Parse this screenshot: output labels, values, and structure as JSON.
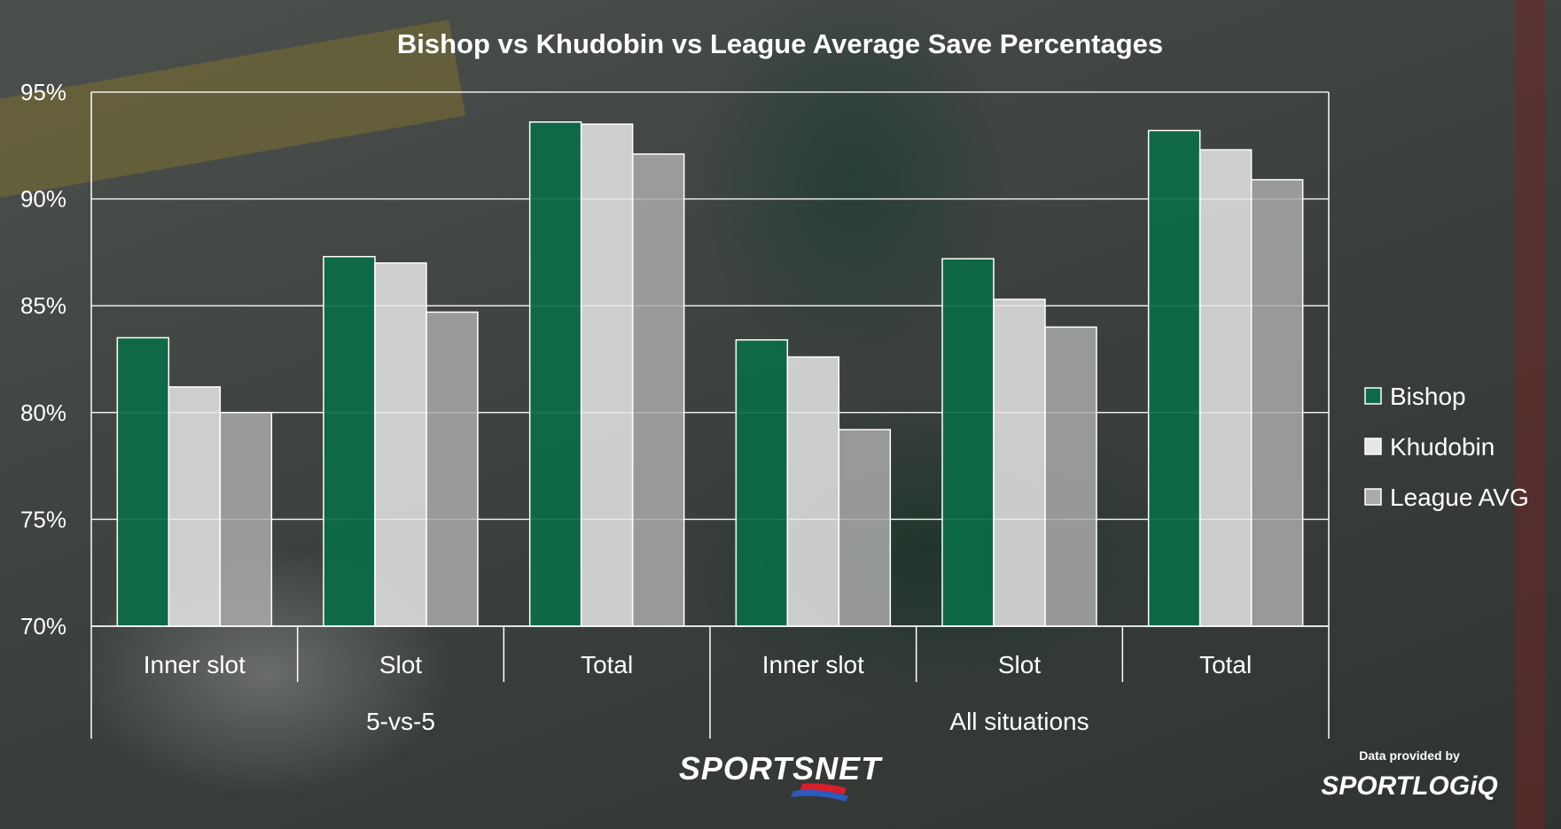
{
  "chart_data": {
    "type": "bar",
    "title": "Bishop vs Khudobin vs League Average Save Percentages",
    "categories": [
      "Inner slot",
      "Slot",
      "Total",
      "Inner slot",
      "Slot",
      "Total"
    ],
    "groups": [
      {
        "label": "5-vs-5",
        "count": 3
      },
      {
        "label": "All situations",
        "count": 3
      }
    ],
    "series": [
      {
        "name": "Bishop",
        "color": "#0b6b47",
        "values": [
          83.5,
          87.3,
          93.6,
          83.4,
          87.2,
          93.2
        ]
      },
      {
        "name": "Khudobin",
        "color": "#e6e6e6",
        "values": [
          81.2,
          87.0,
          93.5,
          82.6,
          85.3,
          92.3
        ]
      },
      {
        "name": "League AVG",
        "color": "#a9aaa9",
        "values": [
          80.0,
          84.7,
          92.1,
          79.2,
          84.0,
          90.9
        ]
      }
    ],
    "y_ticks": [
      "70%",
      "75%",
      "80%",
      "85%",
      "90%",
      "95%"
    ],
    "ylim": [
      70,
      95
    ],
    "grid": true,
    "legend_position": "right"
  },
  "branding": {
    "logo": "SPORTSNET",
    "credit_text": "Data provided by",
    "credit_logo": "SPORTLOGiQ"
  }
}
